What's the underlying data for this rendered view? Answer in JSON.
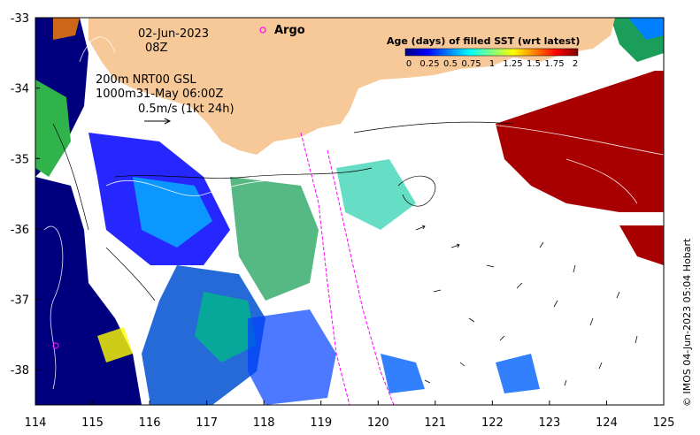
{
  "map": {
    "lon_min": 114,
    "lon_max": 125,
    "lat_min": -38.5,
    "lat_max": -33,
    "x_ticks": [
      "114",
      "115",
      "116",
      "117",
      "118",
      "119",
      "120",
      "121",
      "122",
      "123",
      "124",
      "125"
    ],
    "y_ticks": [
      "-33",
      "-34",
      "-35",
      "-36",
      "-37",
      "-38"
    ]
  },
  "labels": {
    "date": "02-Jun-2023",
    "hour": "08Z",
    "depth_line1": "200m  NRT00 GSL",
    "depth_line2": "1000m31-May 06:00Z",
    "scale": "0.5m/s (1kt 24h)",
    "argo": "Argo",
    "credit": "© IMOS 04-Jun-2023 05:04 Hobart"
  },
  "legend": {
    "title": "Age (days) of filled SST (wrt latest)",
    "ticks": [
      "0",
      "0.25",
      "0.5",
      "0.75",
      "1",
      "1.25",
      "1.5",
      "1.75",
      "2"
    ],
    "colors": [
      "#00007f",
      "#0000ff",
      "#0080ff",
      "#00ffff",
      "#80ff80",
      "#ffff00",
      "#ff8000",
      "#ff0000",
      "#7f0000"
    ]
  },
  "colors": {
    "land": "#f7c898",
    "no_data": "#ffffff",
    "argo": "#ff00ff"
  }
}
